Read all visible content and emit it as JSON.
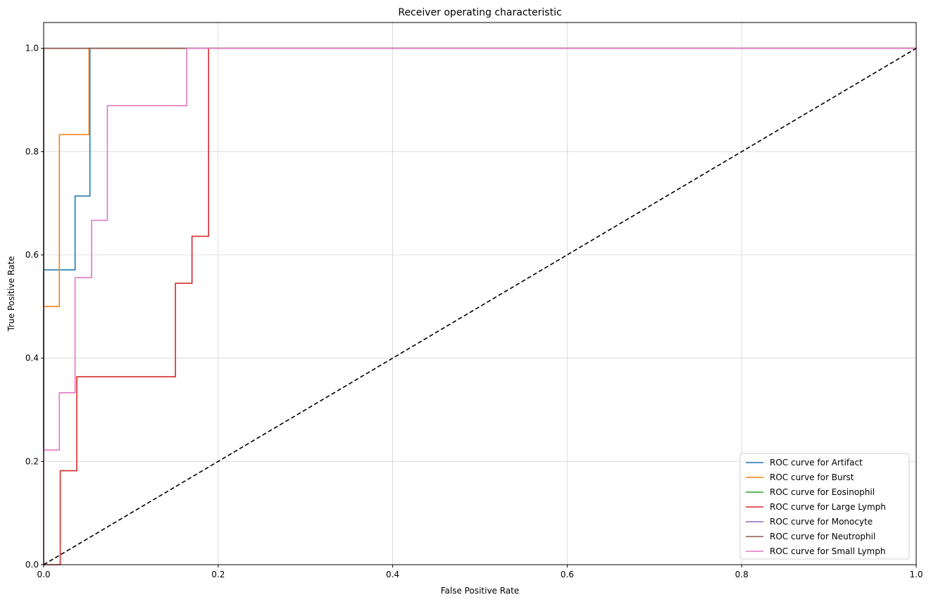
{
  "chart_data": {
    "type": "line",
    "title": "Receiver operating characteristic",
    "xlabel": "False Positive Rate",
    "ylabel": "True Positive Rate",
    "xlim": [
      0,
      1
    ],
    "ylim": [
      0,
      1.05
    ],
    "xticks": [
      0,
      0.2,
      0.4,
      0.6,
      0.8,
      1
    ],
    "xtick_labels": [
      "0.0",
      "0.2",
      "0.4",
      "0.6",
      "0.8",
      "1.0"
    ],
    "yticks": [
      0,
      0.2,
      0.4,
      0.6,
      0.8,
      1
    ],
    "ytick_labels": [
      "0.0",
      "0.2",
      "0.4",
      "0.6",
      "0.8",
      "1.0"
    ],
    "grid": true,
    "legend_position": "lower-right",
    "series": [
      {
        "name": "ROC curve for Artifact",
        "color": "#1f77b4",
        "x": [
          0,
          0,
          0.036,
          0.036,
          0.053,
          0.053,
          1
        ],
        "y": [
          0,
          0.571,
          0.571,
          0.714,
          0.714,
          1,
          1
        ]
      },
      {
        "name": "ROC curve for Burst",
        "color": "#ff7f0e",
        "x": [
          0,
          0,
          0.018,
          0.018,
          0.052,
          0.052,
          1
        ],
        "y": [
          0,
          0.5,
          0.5,
          0.833,
          0.833,
          1,
          1
        ]
      },
      {
        "name": "ROC curve for Eosinophil",
        "color": "#2ca02c",
        "x": [
          0,
          0,
          1
        ],
        "y": [
          0,
          1,
          1
        ]
      },
      {
        "name": "ROC curve for Large Lymph",
        "color": "#d62728",
        "x": [
          0,
          0.019,
          0.019,
          0.038,
          0.038,
          0.151,
          0.151,
          0.17,
          0.17,
          0.189,
          0.189,
          1
        ],
        "y": [
          0,
          0,
          0.182,
          0.182,
          0.364,
          0.364,
          0.545,
          0.545,
          0.636,
          0.636,
          1,
          1
        ]
      },
      {
        "name": "ROC curve for Monocyte",
        "color": "#9467bd",
        "x": [
          0,
          0,
          1
        ],
        "y": [
          0,
          1,
          1
        ]
      },
      {
        "name": "ROC curve for Neutrophil",
        "color": "#8c564b",
        "x": [
          0,
          0,
          1
        ],
        "y": [
          0,
          1,
          1
        ]
      },
      {
        "name": "ROC curve for Small Lymph",
        "color": "#e377c2",
        "x": [
          0,
          0,
          0.018,
          0.018,
          0.036,
          0.036,
          0.055,
          0.055,
          0.073,
          0.073,
          0.164,
          0.164,
          1
        ],
        "y": [
          0,
          0.222,
          0.222,
          0.333,
          0.333,
          0.556,
          0.556,
          0.667,
          0.667,
          0.889,
          0.889,
          1,
          1
        ]
      }
    ],
    "reference_line": {
      "color": "#000000",
      "style": "dashed",
      "x": [
        0,
        1
      ],
      "y": [
        0,
        1
      ]
    }
  }
}
